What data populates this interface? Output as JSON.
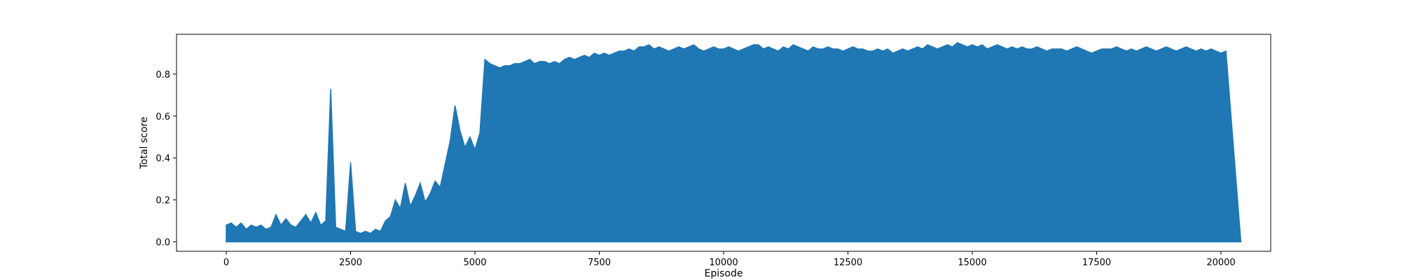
{
  "chart_data": {
    "type": "line",
    "title": "",
    "xlabel": "Episode",
    "ylabel": "Total score",
    "xlim": [
      -1000,
      21000
    ],
    "ylim": [
      -0.045,
      0.99
    ],
    "grid": false,
    "legend": "none",
    "x_ticks": [
      0,
      2500,
      5000,
      7500,
      10000,
      12500,
      15000,
      17500,
      20000
    ],
    "x_tick_labels": [
      "0",
      "2500",
      "5000",
      "7500",
      "10000",
      "12500",
      "15000",
      "17500",
      "20000"
    ],
    "y_ticks": [
      0.0,
      0.2,
      0.4,
      0.6,
      0.8
    ],
    "y_tick_labels": [
      "0.0",
      "0.2",
      "0.4",
      "0.6",
      "0.8"
    ],
    "series": [
      {
        "color": "#1f77b4",
        "x_start": 0,
        "x_step": 100,
        "values_note": "",
        "min": [
          0.0,
          0.0,
          0.0,
          0.0,
          0.0,
          0.0,
          0.0,
          0.0,
          0.0,
          0.0,
          0.0,
          0.0,
          0.0,
          0.0,
          0.0,
          0.0,
          0.0,
          0.0,
          0.0,
          0.0,
          0.0,
          0.0,
          0.0,
          0.0,
          0.0,
          0.0,
          0.0,
          0.0,
          0.0,
          0.0,
          0.0,
          0.0,
          0.0,
          0.0,
          0.0,
          0.0,
          0.0,
          0.0,
          0.0,
          0.0,
          0.0,
          0.0,
          0.0,
          0.0,
          0.0,
          0.0,
          0.0,
          0.0,
          0.0,
          0.0,
          0.0,
          0.0,
          0.0,
          0.0,
          0.0,
          0.0,
          0.0,
          0.0,
          0.0,
          0.0,
          0.0,
          0.0,
          0.0,
          0.0,
          0.0,
          0.0,
          0.0,
          0.0,
          0.0,
          0.0,
          0.0,
          0.0,
          0.0,
          0.0,
          0.0,
          0.0,
          0.0,
          0.0,
          0.0,
          0.0,
          0.0,
          0.0,
          0.0,
          0.0,
          0.0,
          0.0,
          0.0,
          0.0,
          0.0,
          0.0,
          0.0,
          0.0,
          0.0,
          0.0,
          0.0,
          0.0,
          0.0,
          0.0,
          0.0,
          0.0,
          0.0,
          0.0,
          0.0,
          0.0,
          0.0,
          0.0,
          0.0,
          0.0,
          0.0,
          0.0,
          0.0,
          0.0,
          0.0,
          0.0,
          0.0,
          0.0,
          0.0,
          0.0,
          0.0,
          0.0,
          0.0,
          0.0,
          0.0,
          0.0,
          0.0,
          0.0,
          0.0,
          0.0,
          0.0,
          0.0,
          0.0,
          0.0,
          0.0,
          0.0,
          0.0,
          0.0,
          0.0,
          0.0,
          0.0,
          0.0,
          0.0,
          0.0,
          0.0,
          0.0,
          0.0,
          0.0,
          0.0,
          0.0,
          0.0,
          0.0,
          0.0,
          0.0,
          0.0,
          0.0,
          0.0,
          0.0,
          0.0,
          0.0,
          0.0,
          0.0,
          0.0,
          0.0,
          0.0,
          0.0,
          0.0,
          0.0,
          0.0,
          0.0,
          0.0,
          0.0,
          0.0,
          0.0,
          0.0,
          0.0,
          0.0,
          0.0,
          0.0,
          0.0,
          0.0,
          0.0,
          0.0,
          0.0,
          0.0,
          0.0,
          0.0,
          0.0,
          0.0,
          0.0,
          0.0,
          0.0,
          0.0,
          0.0,
          0.0,
          0.0,
          0.0,
          0.0,
          0.0,
          0.0,
          0.0,
          0.0,
          0.0,
          0.0,
          0.0,
          0.0,
          0.0
        ],
        "max": [
          0.08,
          0.09,
          0.07,
          0.09,
          0.06,
          0.08,
          0.07,
          0.08,
          0.06,
          0.07,
          0.13,
          0.08,
          0.11,
          0.08,
          0.07,
          0.1,
          0.13,
          0.09,
          0.14,
          0.08,
          0.1,
          0.73,
          0.07,
          0.06,
          0.05,
          0.38,
          0.05,
          0.04,
          0.05,
          0.04,
          0.06,
          0.05,
          0.1,
          0.12,
          0.2,
          0.16,
          0.28,
          0.17,
          0.22,
          0.28,
          0.19,
          0.23,
          0.29,
          0.26,
          0.37,
          0.48,
          0.65,
          0.53,
          0.45,
          0.5,
          0.44,
          0.52,
          0.87,
          0.85,
          0.84,
          0.83,
          0.84,
          0.84,
          0.85,
          0.85,
          0.86,
          0.87,
          0.85,
          0.86,
          0.86,
          0.85,
          0.86,
          0.85,
          0.87,
          0.88,
          0.87,
          0.88,
          0.89,
          0.88,
          0.9,
          0.89,
          0.9,
          0.89,
          0.9,
          0.91,
          0.91,
          0.92,
          0.91,
          0.93,
          0.93,
          0.94,
          0.92,
          0.93,
          0.92,
          0.91,
          0.92,
          0.93,
          0.92,
          0.93,
          0.94,
          0.92,
          0.91,
          0.92,
          0.93,
          0.92,
          0.92,
          0.93,
          0.92,
          0.91,
          0.92,
          0.93,
          0.94,
          0.94,
          0.92,
          0.93,
          0.92,
          0.91,
          0.93,
          0.92,
          0.94,
          0.93,
          0.92,
          0.91,
          0.93,
          0.92,
          0.92,
          0.93,
          0.92,
          0.92,
          0.91,
          0.92,
          0.93,
          0.92,
          0.92,
          0.91,
          0.91,
          0.92,
          0.91,
          0.92,
          0.9,
          0.91,
          0.92,
          0.91,
          0.92,
          0.93,
          0.92,
          0.94,
          0.93,
          0.92,
          0.93,
          0.94,
          0.93,
          0.95,
          0.94,
          0.93,
          0.94,
          0.93,
          0.94,
          0.92,
          0.93,
          0.94,
          0.93,
          0.92,
          0.93,
          0.92,
          0.93,
          0.92,
          0.92,
          0.93,
          0.92,
          0.91,
          0.92,
          0.92,
          0.92,
          0.91,
          0.92,
          0.93,
          0.92,
          0.91,
          0.9,
          0.91,
          0.92,
          0.92,
          0.92,
          0.93,
          0.92,
          0.91,
          0.92,
          0.91,
          0.92,
          0.93,
          0.92,
          0.91,
          0.92,
          0.93,
          0.92,
          0.91,
          0.92,
          0.93,
          0.92,
          0.91,
          0.92,
          0.91,
          0.92,
          0.91,
          0.9,
          0.91
        ]
      }
    ]
  }
}
